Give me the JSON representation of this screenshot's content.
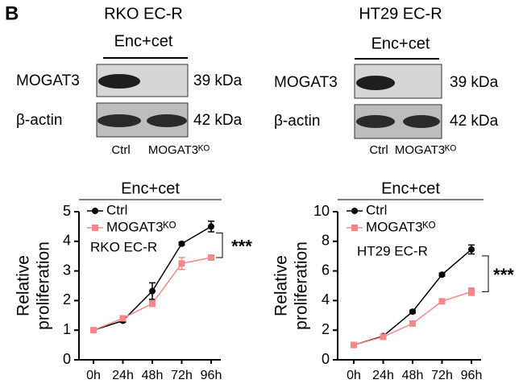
{
  "panel_label": "B",
  "blots": [
    {
      "title": [
        "RKO EC-R",
        "Enc+cet"
      ],
      "rows": [
        {
          "protein": "MOGAT3",
          "size": "39 kDa"
        },
        {
          "protein": "β-actin",
          "size": "42 kDa"
        }
      ],
      "lanes": [
        "Ctrl",
        "MOGAT3ᴷᴼ"
      ]
    },
    {
      "title": [
        "HT29 EC-R",
        "Enc+cet"
      ],
      "rows": [
        {
          "protein": "MOGAT3",
          "size": "39 kDa"
        },
        {
          "protein": "β-actin",
          "size": "42 kDa"
        }
      ],
      "lanes": [
        "Ctrl",
        "MOGAT3ᴷᴼ"
      ]
    }
  ],
  "chart_data": [
    {
      "type": "line",
      "title": "Enc+cet",
      "ylabel": [
        "Relative",
        "proliferation"
      ],
      "annotations": [
        "RKO EC-R",
        "***"
      ],
      "categories": [
        "0h",
        "24h",
        "48h",
        "72h",
        "96h"
      ],
      "series": [
        {
          "name": "Ctrl",
          "color": "#000000",
          "values": [
            1.0,
            1.32,
            2.32,
            3.92,
            4.5
          ],
          "errors": [
            0,
            0.05,
            0.28,
            0.05,
            0.18
          ]
        },
        {
          "name": "MOGAT3ᴷᴼ",
          "color": "#f4878a",
          "values": [
            1.0,
            1.4,
            1.9,
            3.25,
            3.45
          ],
          "errors": [
            0,
            0.05,
            0.1,
            0.2,
            0.08
          ]
        }
      ],
      "ylim": [
        0,
        5
      ],
      "yticks": [
        0,
        1,
        2,
        3,
        4,
        5
      ]
    },
    {
      "type": "line",
      "title": "Enc+cet",
      "ylabel": [
        "Relative",
        "proliferation"
      ],
      "annotations": [
        "HT29 EC-R",
        "***"
      ],
      "categories": [
        "0h",
        "24h",
        "48h",
        "72h",
        "96h"
      ],
      "series": [
        {
          "name": "Ctrl",
          "color": "#000000",
          "values": [
            1.0,
            1.6,
            3.25,
            5.75,
            7.45
          ],
          "errors": [
            0,
            0.05,
            0.1,
            0.1,
            0.3
          ]
        },
        {
          "name": "MOGAT3ᴷᴼ",
          "color": "#f4878a",
          "values": [
            1.0,
            1.55,
            2.45,
            3.95,
            4.6
          ],
          "errors": [
            0,
            0.05,
            0.1,
            0.1,
            0.25
          ]
        }
      ],
      "ylim": [
        0,
        10
      ],
      "yticks": [
        0,
        2,
        4,
        6,
        8,
        10
      ]
    }
  ]
}
